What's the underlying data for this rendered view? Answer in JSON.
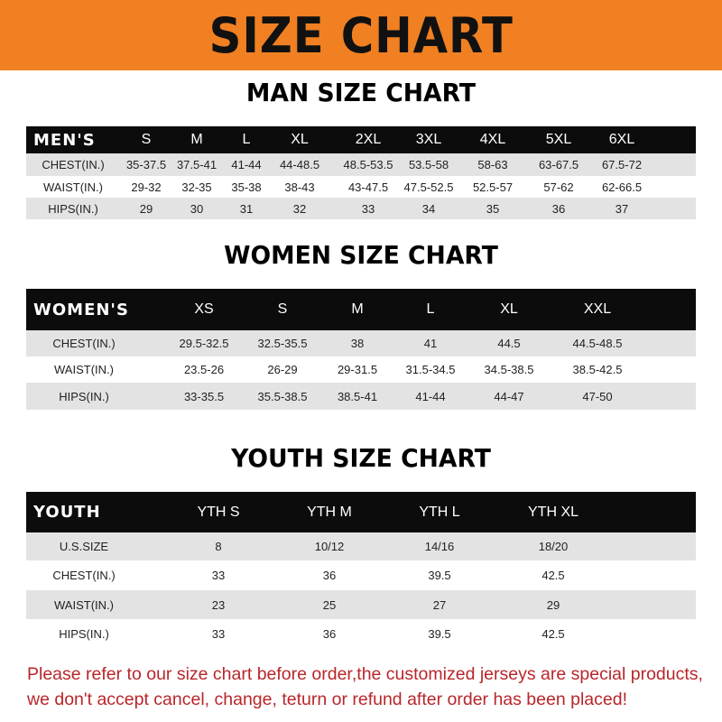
{
  "banner_title": "SIZE CHART",
  "colors": {
    "banner": "#f08022",
    "header_row": "#0c0c0c",
    "stripe": "#e3e3e3",
    "note": "#b8262a"
  },
  "men": {
    "title": "MAN SIZE CHART",
    "header": [
      "MEN'S",
      "S",
      "M",
      "L",
      "XL",
      "2XL",
      "3XL",
      "4XL",
      "5XL",
      "6XL"
    ],
    "rows": [
      [
        "CHEST(IN.)",
        "35-37.5",
        "37.5-41",
        "41-44",
        "44-48.5",
        "48.5-53.5",
        "53.5-58",
        "58-63",
        "63-67.5",
        "67.5-72"
      ],
      [
        "WAIST(IN.)",
        "29-32",
        "32-35",
        "35-38",
        "38-43",
        "43-47.5",
        "47.5-52.5",
        "52.5-57",
        "57-62",
        "62-66.5"
      ],
      [
        "HIPS(IN.)",
        "29",
        "30",
        "31",
        "32",
        "33",
        "34",
        "35",
        "36",
        "37"
      ]
    ]
  },
  "women": {
    "title": "WOMEN SIZE CHART",
    "header": [
      "WOMEN'S",
      "XS",
      "S",
      "M",
      "L",
      "XL",
      "XXL"
    ],
    "rows": [
      [
        "CHEST(IN.)",
        "29.5-32.5",
        "32.5-35.5",
        "38",
        "41",
        "44.5",
        "44.5-48.5"
      ],
      [
        "WAIST(IN.)",
        "23.5-26",
        "26-29",
        "29-31.5",
        "31.5-34.5",
        "34.5-38.5",
        "38.5-42.5"
      ],
      [
        "HIPS(IN.)",
        "33-35.5",
        "35.5-38.5",
        "38.5-41",
        "41-44",
        "44-47",
        "47-50"
      ]
    ]
  },
  "youth": {
    "title": "YOUTH SIZE CHART",
    "header": [
      "YOUTH",
      "YTH S",
      "YTH M",
      "YTH L",
      "YTH XL"
    ],
    "rows": [
      [
        "U.S.SIZE",
        "8",
        "10/12",
        "14/16",
        "18/20"
      ],
      [
        "CHEST(IN.)",
        "33",
        "36",
        "39.5",
        "42.5"
      ],
      [
        "WAIST(IN.)",
        "23",
        "25",
        "27",
        "29"
      ],
      [
        "HIPS(IN.)",
        "33",
        "36",
        "39.5",
        "42.5"
      ]
    ]
  },
  "note": {
    "line1": "Please refer to our size chart before order,the customized jerseys are special products,",
    "line2": "we don't accept cancel, change, teturn or refund after order has been placed!"
  }
}
